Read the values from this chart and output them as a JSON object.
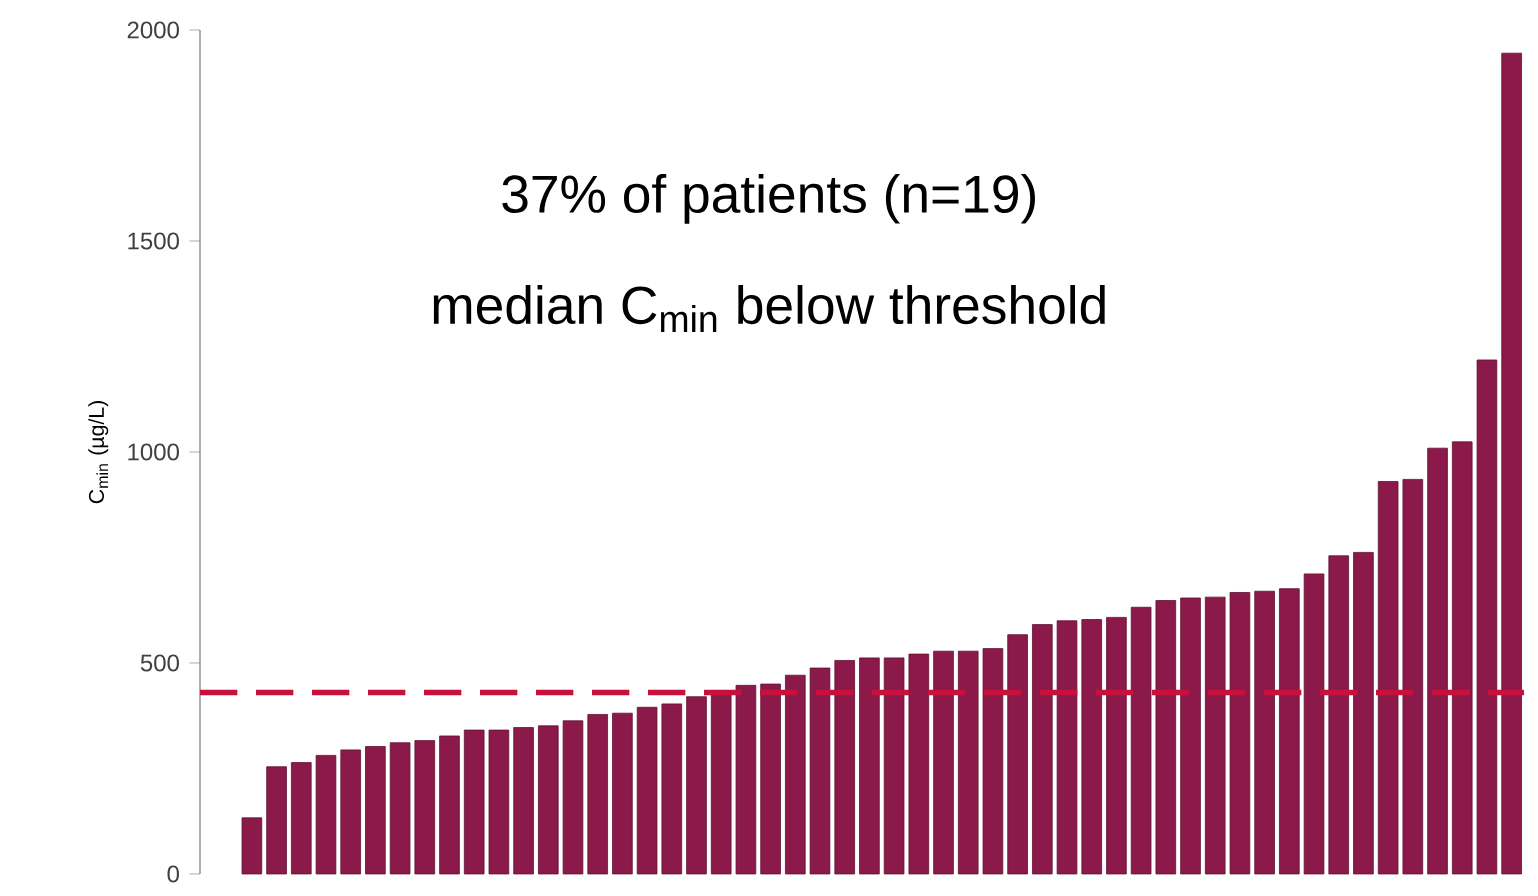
{
  "chart_data": {
    "type": "bar",
    "ylabel": "C$_{min}$ (µg/L)",
    "annotations": [
      "37% of patients (n=19)",
      "median C$_{min}$ below threshold"
    ],
    "categories": [
      null,
      null,
      null,
      null,
      null,
      null,
      null,
      null,
      null,
      null,
      null,
      null,
      null,
      null,
      null,
      null,
      null,
      null,
      null,
      null,
      null,
      null,
      null,
      null,
      null,
      null,
      null,
      null,
      null,
      null,
      null,
      null,
      null,
      null,
      null,
      null,
      null,
      null,
      null,
      null,
      null,
      null,
      null,
      null,
      null,
      null,
      null,
      null,
      null,
      null,
      null,
      null
    ],
    "values": [
      133,
      254,
      264,
      281,
      294,
      302,
      311,
      316,
      327,
      341,
      341,
      347,
      351,
      363,
      378,
      381,
      395,
      403,
      420,
      433,
      447,
      450,
      471,
      488,
      506,
      512,
      512,
      521,
      528,
      528,
      534,
      567,
      591,
      600,
      603,
      608,
      632,
      648,
      654,
      656,
      667,
      670,
      676,
      711,
      754,
      762,
      930,
      935,
      1009,
      1024,
      1218,
      1945
    ],
    "color": "#8b1a4a",
    "ylim": [
      0,
      2000
    ],
    "yticks": [
      0,
      500,
      1000,
      1500,
      2000
    ],
    "tick_labels": "y",
    "ref_lines": [
      {
        "axis": "y",
        "value": 430,
        "color": "#c8103c",
        "line_style": "dashed"
      }
    ]
  }
}
